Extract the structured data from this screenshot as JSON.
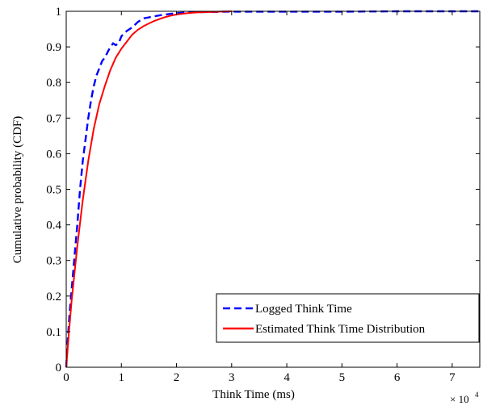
{
  "chart_data": {
    "type": "line",
    "title": "",
    "xlabel": "Think Time (ms)",
    "ylabel": "Cumulative probability (CDF)",
    "x_exponent_label": "× 10",
    "x_exponent_power": "4",
    "xlim": [
      0,
      75000
    ],
    "ylim": [
      0,
      1
    ],
    "x_ticks": [
      0,
      10000,
      20000,
      30000,
      40000,
      50000,
      60000,
      70000
    ],
    "x_tick_labels": [
      "0",
      "1",
      "2",
      "3",
      "4",
      "5",
      "6",
      "7"
    ],
    "y_ticks": [
      0,
      0.1,
      0.2,
      0.3,
      0.4,
      0.5,
      0.6,
      0.7,
      0.8,
      0.9,
      1
    ],
    "y_tick_labels": [
      "0",
      "0.1",
      "0.2",
      "0.3",
      "0.4",
      "0.5",
      "0.6",
      "0.7",
      "0.8",
      "0.9",
      "1"
    ],
    "grid": false,
    "legend_position": "bottom-right",
    "series": [
      {
        "name": "Logged Think Time",
        "color": "#0000ff",
        "style": "dashed",
        "x": [
          0,
          300,
          600,
          1000,
          1500,
          2000,
          2500,
          3000,
          3500,
          4000,
          4500,
          5000,
          5500,
          6000,
          6500,
          7000,
          7500,
          8000,
          8500,
          9000,
          9500,
          10000,
          11000,
          12000,
          13000,
          14000,
          15000,
          16000,
          17000,
          18000,
          19000,
          20000,
          21000,
          22000,
          25000,
          30000,
          40000,
          50000,
          60000,
          70000,
          75000
        ],
        "y": [
          0,
          0.08,
          0.15,
          0.22,
          0.31,
          0.4,
          0.5,
          0.58,
          0.64,
          0.7,
          0.75,
          0.79,
          0.82,
          0.84,
          0.86,
          0.87,
          0.885,
          0.9,
          0.91,
          0.905,
          0.91,
          0.93,
          0.945,
          0.955,
          0.97,
          0.98,
          0.983,
          0.986,
          0.989,
          0.991,
          0.993,
          0.995,
          0.996,
          0.997,
          0.998,
          0.999,
          0.999,
          0.999,
          1.0,
          1.0,
          1.0
        ]
      },
      {
        "name": "Estimated Think Time Distribution",
        "color": "#ff0000",
        "style": "solid",
        "x": [
          0,
          500,
          1000,
          2000,
          3000,
          4000,
          5000,
          6000,
          7000,
          8000,
          9000,
          10000,
          11000,
          12000,
          13000,
          14000,
          15000,
          16000,
          17000,
          18000,
          19000,
          20000,
          22000,
          24000,
          26000,
          28000,
          30000
        ],
        "y": [
          0,
          0.1,
          0.19,
          0.34,
          0.47,
          0.58,
          0.67,
          0.74,
          0.79,
          0.835,
          0.87,
          0.895,
          0.915,
          0.935,
          0.948,
          0.958,
          0.966,
          0.973,
          0.979,
          0.984,
          0.988,
          0.991,
          0.995,
          0.997,
          0.998,
          0.999,
          1.0
        ]
      }
    ]
  }
}
